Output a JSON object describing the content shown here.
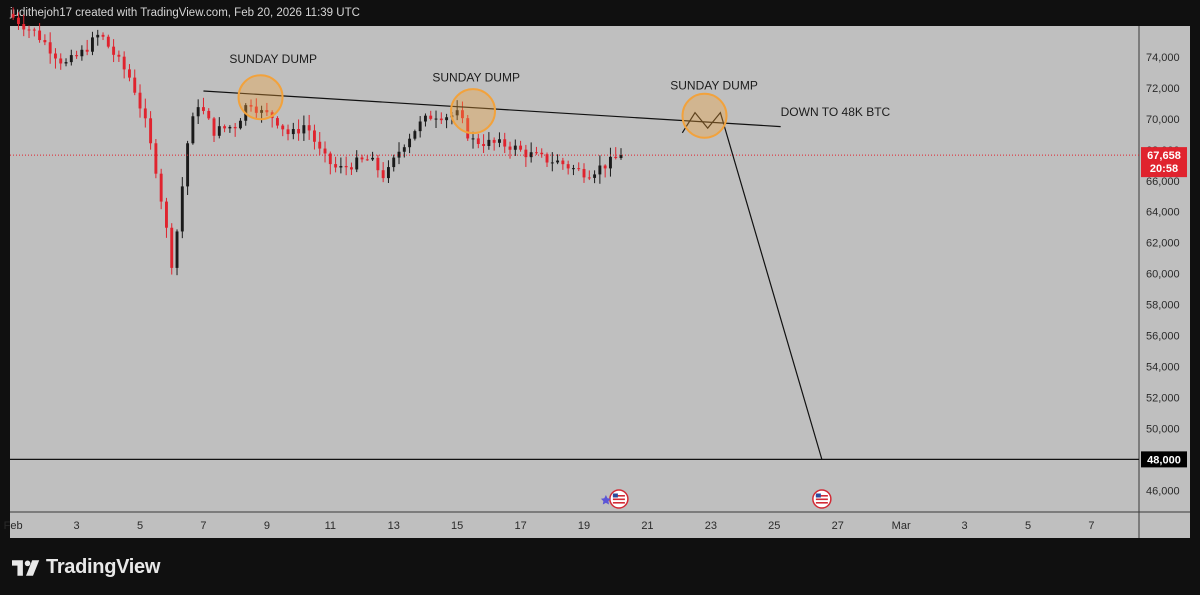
{
  "header": {
    "text": "judithejoh17 created with TradingView.com, Feb 20, 2026 11:39 UTC"
  },
  "brand": {
    "name": "TradingView",
    "logo_icon": "tradingview-logo-icon"
  },
  "colors": {
    "chart_bg": "#bfbfbf",
    "frame": "#101010",
    "bear": "#e0232e",
    "bull": "#1a1a1a",
    "price_tag": "#e0232e",
    "level_tag": "#000000",
    "circle_fill": "#f3a33a",
    "circle_stroke": "#f2a23c"
  },
  "chart_data": {
    "type": "candlestick",
    "title": "",
    "xlabel": "",
    "ylabel": "",
    "ylim": [
      44600,
      76000
    ],
    "y_ticks": [
      46000,
      48000,
      50000,
      52000,
      54000,
      56000,
      58000,
      60000,
      62000,
      64000,
      66000,
      68000,
      70000,
      72000,
      74000
    ],
    "y_tick_labels": [
      "46,000",
      "48,000",
      "50,000",
      "52,000",
      "54,000",
      "56,000",
      "58,000",
      "60,000",
      "62,000",
      "64,000",
      "66,000",
      "68,000",
      "70,000",
      "72,000",
      "74,000"
    ],
    "x_ticks": [
      {
        "label": "Feb",
        "day": 1
      },
      {
        "label": "3",
        "day": 3
      },
      {
        "label": "5",
        "day": 5
      },
      {
        "label": "7",
        "day": 7
      },
      {
        "label": "9",
        "day": 9
      },
      {
        "label": "11",
        "day": 11
      },
      {
        "label": "13",
        "day": 13
      },
      {
        "label": "15",
        "day": 15
      },
      {
        "label": "17",
        "day": 17
      },
      {
        "label": "19",
        "day": 19
      },
      {
        "label": "21",
        "day": 21
      },
      {
        "label": "23",
        "day": 23
      },
      {
        "label": "25",
        "day": 25
      },
      {
        "label": "27",
        "day": 27
      },
      {
        "label": "Mar",
        "day": 29
      },
      {
        "label": "3",
        "day": 31
      },
      {
        "label": "5",
        "day": 33
      },
      {
        "label": "7",
        "day": 35
      }
    ],
    "x_range_days": [
      0.9,
      36.5
    ],
    "current_price": {
      "value": 67658,
      "label": "67,658",
      "countdown": "20:58"
    },
    "target_level": {
      "value": 48000,
      "label": "48,000"
    },
    "candle_key_points": [
      [
        0.5,
        77500
      ],
      [
        1.9,
        75500
      ],
      [
        2.8,
        73500
      ],
      [
        3.3,
        74200
      ],
      [
        3.9,
        75500
      ],
      [
        4.4,
        74000
      ],
      [
        4.9,
        72500
      ],
      [
        5.3,
        70000
      ],
      [
        5.7,
        66500
      ],
      [
        6.0,
        62800
      ],
      [
        6.2,
        60300
      ],
      [
        6.4,
        64000
      ],
      [
        6.7,
        69000
      ],
      [
        7.0,
        71000
      ],
      [
        7.5,
        69200
      ],
      [
        8.2,
        69600
      ],
      [
        8.6,
        71200
      ],
      [
        9.0,
        70400
      ],
      [
        9.4,
        70100
      ],
      [
        9.9,
        68900
      ],
      [
        10.4,
        69700
      ],
      [
        10.9,
        67600
      ],
      [
        11.4,
        66700
      ],
      [
        11.9,
        67100
      ],
      [
        12.4,
        67400
      ],
      [
        12.9,
        66200
      ],
      [
        13.4,
        68200
      ],
      [
        13.9,
        69500
      ],
      [
        14.4,
        70300
      ],
      [
        14.9,
        70200
      ],
      [
        15.2,
        70300
      ],
      [
        15.6,
        68600
      ],
      [
        16.3,
        68400
      ],
      [
        16.8,
        68300
      ],
      [
        17.3,
        67800
      ],
      [
        17.9,
        67400
      ],
      [
        18.4,
        67200
      ],
      [
        18.9,
        66700
      ],
      [
        19.3,
        66500
      ],
      [
        19.7,
        66900
      ],
      [
        20.1,
        67300
      ],
      [
        20.3,
        67658
      ]
    ],
    "trendline": {
      "from": {
        "day": 7.0,
        "price": 71800
      },
      "to": {
        "day": 25.2,
        "price": 69500
      }
    },
    "projection": [
      {
        "day": 22.1,
        "price": 69100
      },
      {
        "day": 22.5,
        "price": 70400
      },
      {
        "day": 22.9,
        "price": 69400
      },
      {
        "day": 23.3,
        "price": 70400
      },
      {
        "day": 26.5,
        "price": 48000
      }
    ],
    "annotations": [
      {
        "text": "SUNDAY DUMP",
        "day": 9.2,
        "price": 73600
      },
      {
        "text": "SUNDAY DUMP",
        "day": 15.6,
        "price": 72400
      },
      {
        "text": "SUNDAY DUMP",
        "day": 23.1,
        "price": 71900
      },
      {
        "text": "DOWN TO 48K BTC",
        "day": 25.2,
        "price": 70200
      }
    ],
    "highlight_circles": [
      {
        "name": "circle-dump-1",
        "day": 8.8,
        "price": 71400
      },
      {
        "name": "circle-dump-2",
        "day": 15.5,
        "price": 70500
      },
      {
        "name": "circle-dump-3",
        "day": 22.8,
        "price": 70200
      }
    ],
    "event_markers": [
      {
        "name": "us-flag-event-icon-1",
        "day": 20.1,
        "type": "star"
      },
      {
        "name": "us-flag-event-icon-2",
        "day": 26.5,
        "type": "plain"
      }
    ]
  }
}
